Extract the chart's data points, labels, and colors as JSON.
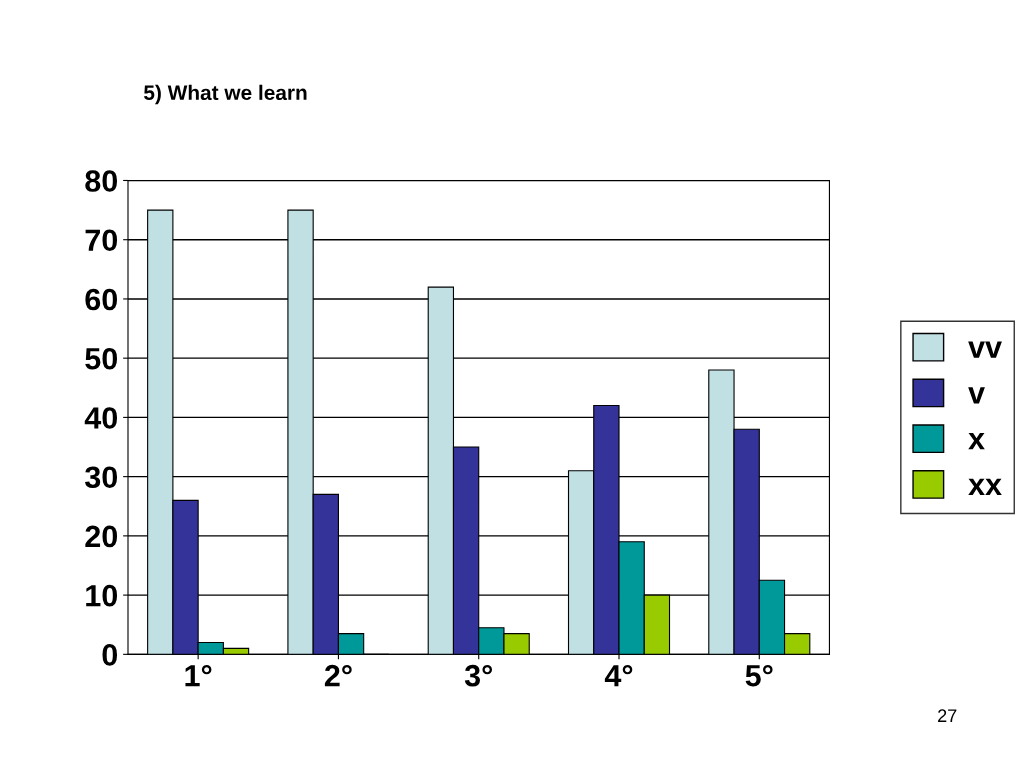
{
  "chart_data": {
    "type": "bar",
    "title": "5) What we learn",
    "categories": [
      "1°",
      "2°",
      "3°",
      "4°",
      "5°"
    ],
    "series": [
      {
        "name": "vv",
        "color": "#c0e0e4",
        "values": [
          75,
          75,
          62,
          31,
          48
        ]
      },
      {
        "name": "v",
        "color": "#333399",
        "values": [
          26,
          27,
          35,
          42,
          38
        ]
      },
      {
        "name": "x",
        "color": "#009999",
        "values": [
          2,
          3.5,
          4.5,
          19,
          12.5
        ]
      },
      {
        "name": "xx",
        "color": "#99cc00",
        "values": [
          1,
          0,
          3.5,
          10,
          3.5
        ]
      }
    ],
    "ylim": [
      0,
      80
    ],
    "yticks": [
      0,
      10,
      20,
      30,
      40,
      50,
      60,
      70,
      80
    ],
    "grid": "y",
    "legend": "right",
    "annotations": [
      "27"
    ]
  }
}
